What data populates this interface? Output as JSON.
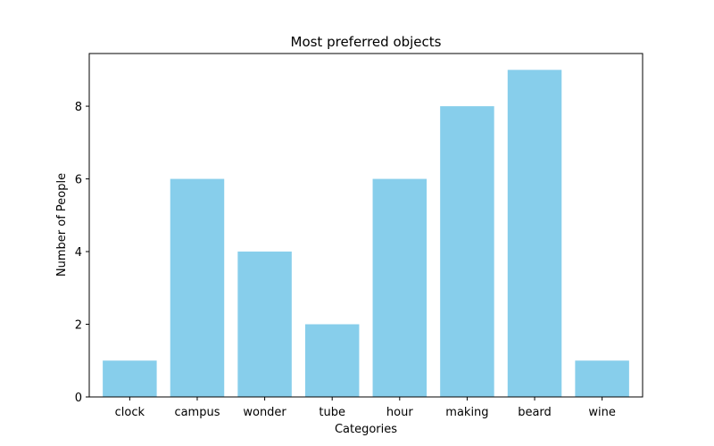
{
  "chart_data": {
    "type": "bar",
    "title": "Most preferred objects",
    "xlabel": "Categories",
    "ylabel": "Number of People",
    "categories": [
      "clock",
      "campus",
      "wonder",
      "tube",
      "hour",
      "making",
      "beard",
      "wine"
    ],
    "values": [
      1,
      6,
      4,
      2,
      6,
      8,
      9,
      1
    ],
    "ylim": [
      0,
      9.45
    ],
    "yticks": [
      0,
      2,
      4,
      6,
      8
    ],
    "bar_color": "#87ceeb",
    "grid": false,
    "legend": "none"
  }
}
